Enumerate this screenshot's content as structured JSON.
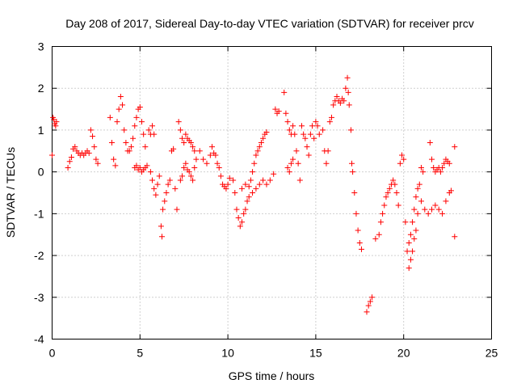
{
  "chart_data": {
    "type": "scatter",
    "title": "Day 208 of 2017, Sidereal Day-to-day VTEC variation (SDTVAR) for receiver prcv",
    "xlabel": "GPS time / hours",
    "ylabel": "SDTVAR / TECUs",
    "xlim": [
      0,
      25
    ],
    "ylim": [
      -4,
      3
    ],
    "xticks": [
      0,
      5,
      10,
      15,
      20,
      25
    ],
    "xtick_labels": [
      "0",
      "5",
      "10",
      "15",
      "20",
      "25"
    ],
    "yticks": [
      -4,
      -3,
      -2,
      -1,
      0,
      1,
      2,
      3
    ],
    "ytick_labels": [
      "-4",
      "-3",
      "-2",
      "-1",
      "0",
      "1",
      "2",
      "3"
    ],
    "grid": true,
    "marker": "+",
    "color": "#ff0000",
    "series": [
      {
        "name": "SDTVAR",
        "points": [
          [
            0.0,
            0.4
          ],
          [
            0.05,
            1.3
          ],
          [
            0.1,
            1.25
          ],
          [
            0.15,
            1.15
          ],
          [
            0.2,
            1.1
          ],
          [
            0.25,
            1.2
          ],
          [
            0.9,
            0.1
          ],
          [
            1.0,
            0.25
          ],
          [
            1.1,
            0.35
          ],
          [
            1.2,
            0.55
          ],
          [
            1.3,
            0.6
          ],
          [
            1.4,
            0.5
          ],
          [
            1.5,
            0.45
          ],
          [
            1.6,
            0.4
          ],
          [
            1.7,
            0.45
          ],
          [
            1.8,
            0.4
          ],
          [
            1.9,
            0.45
          ],
          [
            2.0,
            0.5
          ],
          [
            2.1,
            0.45
          ],
          [
            2.2,
            1.0
          ],
          [
            2.3,
            0.85
          ],
          [
            2.4,
            0.6
          ],
          [
            2.5,
            0.3
          ],
          [
            2.6,
            0.2
          ],
          [
            3.3,
            1.3
          ],
          [
            3.4,
            0.7
          ],
          [
            3.5,
            0.3
          ],
          [
            3.6,
            0.15
          ],
          [
            3.7,
            1.2
          ],
          [
            3.8,
            1.5
          ],
          [
            3.9,
            1.8
          ],
          [
            4.0,
            1.6
          ],
          [
            4.1,
            1.0
          ],
          [
            4.2,
            0.7
          ],
          [
            4.3,
            0.5
          ],
          [
            4.4,
            0.5
          ],
          [
            4.5,
            0.6
          ],
          [
            4.6,
            0.8
          ],
          [
            4.7,
            1.1
          ],
          [
            4.8,
            1.3
          ],
          [
            4.9,
            1.5
          ],
          [
            5.0,
            1.55
          ],
          [
            5.1,
            1.2
          ],
          [
            5.2,
            0.9
          ],
          [
            5.3,
            0.6
          ],
          [
            4.7,
            0.1
          ],
          [
            4.8,
            0.15
          ],
          [
            4.9,
            0.05
          ],
          [
            5.0,
            0.1
          ],
          [
            5.1,
            0.0
          ],
          [
            5.2,
            0.05
          ],
          [
            5.3,
            0.1
          ],
          [
            5.4,
            0.15
          ],
          [
            5.5,
            1.0
          ],
          [
            5.6,
            0.9
          ],
          [
            5.7,
            1.1
          ],
          [
            5.8,
            0.9
          ],
          [
            5.6,
            0.0
          ],
          [
            5.7,
            -0.2
          ],
          [
            5.8,
            -0.4
          ],
          [
            5.9,
            -0.55
          ],
          [
            6.0,
            -0.3
          ],
          [
            6.1,
            -0.1
          ],
          [
            6.2,
            -1.3
          ],
          [
            6.25,
            -1.55
          ],
          [
            6.3,
            -0.9
          ],
          [
            6.4,
            -0.7
          ],
          [
            6.5,
            -0.5
          ],
          [
            6.6,
            -0.3
          ],
          [
            6.7,
            -0.2
          ],
          [
            6.8,
            0.5
          ],
          [
            6.9,
            0.55
          ],
          [
            7.0,
            -0.4
          ],
          [
            7.1,
            -0.9
          ],
          [
            7.2,
            1.2
          ],
          [
            7.3,
            1.0
          ],
          [
            7.4,
            0.8
          ],
          [
            7.5,
            0.7
          ],
          [
            7.6,
            0.9
          ],
          [
            7.7,
            0.8
          ],
          [
            7.8,
            0.75
          ],
          [
            7.9,
            0.7
          ],
          [
            8.0,
            0.6
          ],
          [
            8.1,
            0.5
          ],
          [
            7.3,
            -0.2
          ],
          [
            7.4,
            -0.1
          ],
          [
            7.5,
            0.1
          ],
          [
            7.6,
            0.2
          ],
          [
            7.7,
            0.05
          ],
          [
            7.8,
            0.0
          ],
          [
            7.9,
            -0.1
          ],
          [
            8.0,
            -0.2
          ],
          [
            8.1,
            0.1
          ],
          [
            8.2,
            0.3
          ],
          [
            8.4,
            0.5
          ],
          [
            8.6,
            0.3
          ],
          [
            8.8,
            0.2
          ],
          [
            9.0,
            0.4
          ],
          [
            9.1,
            0.6
          ],
          [
            9.2,
            0.45
          ],
          [
            9.3,
            0.4
          ],
          [
            9.4,
            0.2
          ],
          [
            9.5,
            0.1
          ],
          [
            9.6,
            -0.1
          ],
          [
            9.7,
            -0.3
          ],
          [
            9.8,
            -0.35
          ],
          [
            9.9,
            -0.4
          ],
          [
            10.0,
            -0.3
          ],
          [
            10.1,
            -0.15
          ],
          [
            10.3,
            -0.2
          ],
          [
            10.4,
            -0.5
          ],
          [
            10.5,
            -0.9
          ],
          [
            10.6,
            -1.1
          ],
          [
            10.7,
            -1.3
          ],
          [
            10.8,
            -1.2
          ],
          [
            10.9,
            -1.0
          ],
          [
            11.0,
            -0.9
          ],
          [
            11.1,
            -0.7
          ],
          [
            11.2,
            -0.6
          ],
          [
            11.3,
            -0.2
          ],
          [
            11.4,
            0.0
          ],
          [
            11.5,
            0.2
          ],
          [
            11.6,
            0.4
          ],
          [
            11.7,
            0.5
          ],
          [
            11.8,
            0.6
          ],
          [
            11.9,
            0.7
          ],
          [
            12.0,
            0.8
          ],
          [
            12.1,
            0.9
          ],
          [
            12.2,
            0.95
          ],
          [
            10.8,
            -0.4
          ],
          [
            11.0,
            -0.3
          ],
          [
            11.2,
            -0.35
          ],
          [
            11.4,
            -0.5
          ],
          [
            11.6,
            -0.4
          ],
          [
            11.8,
            -0.3
          ],
          [
            12.0,
            -0.2
          ],
          [
            12.2,
            -0.3
          ],
          [
            12.4,
            -0.2
          ],
          [
            12.6,
            -0.05
          ],
          [
            12.7,
            1.5
          ],
          [
            12.8,
            1.4
          ],
          [
            12.9,
            1.45
          ],
          [
            13.2,
            1.9
          ],
          [
            13.3,
            1.4
          ],
          [
            13.4,
            1.2
          ],
          [
            13.5,
            1.0
          ],
          [
            13.6,
            0.9
          ],
          [
            13.7,
            1.1
          ],
          [
            13.8,
            0.9
          ],
          [
            13.9,
            0.5
          ],
          [
            14.0,
            0.2
          ],
          [
            14.1,
            -0.2
          ],
          [
            13.4,
            0.1
          ],
          [
            13.5,
            0.0
          ],
          [
            13.6,
            0.2
          ],
          [
            13.7,
            0.3
          ],
          [
            14.2,
            1.1
          ],
          [
            14.3,
            0.9
          ],
          [
            14.4,
            0.8
          ],
          [
            14.5,
            0.6
          ],
          [
            14.6,
            0.4
          ],
          [
            14.7,
            0.9
          ],
          [
            14.8,
            1.1
          ],
          [
            14.9,
            0.8
          ],
          [
            15.0,
            1.2
          ],
          [
            15.1,
            1.1
          ],
          [
            15.2,
            0.9
          ],
          [
            15.4,
            1.0
          ],
          [
            15.5,
            0.5
          ],
          [
            15.6,
            0.2
          ],
          [
            15.7,
            0.5
          ],
          [
            15.8,
            1.2
          ],
          [
            15.9,
            1.3
          ],
          [
            16.0,
            1.6
          ],
          [
            16.1,
            1.7
          ],
          [
            16.2,
            1.8
          ],
          [
            16.3,
            1.7
          ],
          [
            16.4,
            1.65
          ],
          [
            16.5,
            1.75
          ],
          [
            16.6,
            1.7
          ],
          [
            16.7,
            2.0
          ],
          [
            16.8,
            2.25
          ],
          [
            16.85,
            1.9
          ],
          [
            16.9,
            1.6
          ],
          [
            17.0,
            1.0
          ],
          [
            17.05,
            0.2
          ],
          [
            17.1,
            0.0
          ],
          [
            17.2,
            -0.5
          ],
          [
            17.3,
            -1.0
          ],
          [
            17.4,
            -1.4
          ],
          [
            17.5,
            -1.7
          ],
          [
            17.6,
            -1.85
          ],
          [
            17.9,
            -3.35
          ],
          [
            18.0,
            -3.2
          ],
          [
            18.1,
            -3.1
          ],
          [
            18.2,
            -3.0
          ],
          [
            18.4,
            -1.6
          ],
          [
            18.6,
            -1.5
          ],
          [
            18.7,
            -1.2
          ],
          [
            18.8,
            -1.0
          ],
          [
            18.9,
            -0.8
          ],
          [
            19.0,
            -0.6
          ],
          [
            19.1,
            -0.5
          ],
          [
            19.2,
            -0.4
          ],
          [
            19.3,
            -0.3
          ],
          [
            19.4,
            -0.2
          ],
          [
            19.5,
            -0.3
          ],
          [
            19.6,
            -0.5
          ],
          [
            19.7,
            -0.8
          ],
          [
            19.8,
            0.2
          ],
          [
            19.9,
            0.4
          ],
          [
            20.0,
            0.3
          ],
          [
            20.1,
            -1.2
          ],
          [
            20.2,
            -1.9
          ],
          [
            20.3,
            -1.7
          ],
          [
            20.4,
            -1.5
          ],
          [
            20.5,
            -1.2
          ],
          [
            20.6,
            -0.9
          ],
          [
            20.7,
            -0.6
          ],
          [
            20.8,
            -0.4
          ],
          [
            20.9,
            -0.3
          ],
          [
            21.0,
            0.1
          ],
          [
            21.1,
            0.0
          ],
          [
            20.3,
            -2.3
          ],
          [
            20.4,
            -2.1
          ],
          [
            20.5,
            -1.9
          ],
          [
            20.6,
            -1.6
          ],
          [
            20.7,
            -1.4
          ],
          [
            20.8,
            -1.0
          ],
          [
            21.0,
            -0.7
          ],
          [
            21.2,
            -0.9
          ],
          [
            21.4,
            -1.0
          ],
          [
            21.5,
            0.7
          ],
          [
            21.6,
            0.3
          ],
          [
            21.7,
            0.1
          ],
          [
            21.8,
            0.0
          ],
          [
            21.9,
            0.05
          ],
          [
            22.0,
            0.1
          ],
          [
            22.1,
            0.0
          ],
          [
            22.2,
            0.1
          ],
          [
            22.3,
            0.2
          ],
          [
            22.4,
            0.3
          ],
          [
            22.5,
            0.25
          ],
          [
            22.6,
            0.2
          ],
          [
            21.6,
            -0.9
          ],
          [
            21.8,
            -0.8
          ],
          [
            22.0,
            -0.9
          ],
          [
            22.2,
            -1.0
          ],
          [
            22.4,
            -0.7
          ],
          [
            22.6,
            -0.5
          ],
          [
            22.7,
            -0.45
          ],
          [
            22.9,
            0.6
          ],
          [
            22.9,
            -1.55
          ]
        ]
      }
    ]
  }
}
